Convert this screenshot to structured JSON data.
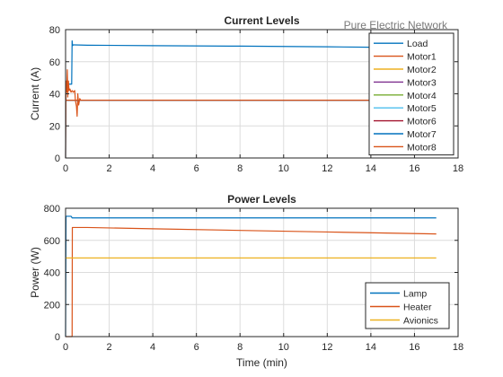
{
  "figure": {
    "annotation": "Pure Electric Network"
  },
  "chart_data": [
    {
      "type": "line",
      "title": "Current Levels",
      "xlabel": "",
      "ylabel": "Current (A)",
      "xlim": [
        0,
        18
      ],
      "ylim": [
        0,
        80
      ],
      "xticks": [
        "0",
        "2",
        "4",
        "6",
        "8",
        "10",
        "12",
        "14",
        "16",
        "18"
      ],
      "yticks": [
        "0",
        "20",
        "40",
        "60",
        "80"
      ],
      "grid": true,
      "legend_placement": "top-right",
      "series": [
        {
          "name": "Load",
          "color": "#0072BD",
          "x": [
            0,
            0.02,
            0.05,
            0.1,
            0.2,
            0.28,
            0.3,
            0.32,
            0.35,
            0.4,
            1,
            4,
            8,
            12,
            14
          ],
          "y": [
            0,
            40,
            44,
            46,
            46,
            46,
            73,
            70,
            70.5,
            70.5,
            70.3,
            70,
            69.7,
            69.3,
            69
          ]
        },
        {
          "name": "Motor1",
          "color": "#D95319",
          "x": [
            0,
            0.02,
            0.05,
            0.08,
            0.1,
            0.13,
            0.16,
            0.2,
            0.25,
            0.3,
            0.35,
            0.42,
            0.45,
            0.5,
            0.53,
            0.56,
            0.6,
            0.65,
            0.7,
            1,
            4,
            8,
            12,
            14
          ],
          "y": [
            0,
            48,
            41,
            55,
            38,
            48,
            42,
            43,
            41,
            42,
            41,
            42,
            36,
            32,
            26,
            40,
            33,
            37,
            36,
            36,
            36,
            36,
            36,
            36
          ]
        },
        {
          "name": "Motor2",
          "color": "#EDB120",
          "x": [
            0,
            14
          ],
          "y": [
            36,
            36
          ]
        },
        {
          "name": "Motor3",
          "color": "#7E2F8E",
          "x": [
            0,
            14
          ],
          "y": [
            36,
            36
          ]
        },
        {
          "name": "Motor4",
          "color": "#77AC30",
          "x": [
            0,
            14
          ],
          "y": [
            36,
            36
          ]
        },
        {
          "name": "Motor5",
          "color": "#4DBEEE",
          "x": [
            0,
            14
          ],
          "y": [
            36,
            36
          ]
        },
        {
          "name": "Motor6",
          "color": "#A2142F",
          "x": [
            0,
            14
          ],
          "y": [
            36,
            36
          ]
        },
        {
          "name": "Motor7",
          "color": "#0072BD",
          "x": [
            0,
            14
          ],
          "y": [
            36,
            36
          ]
        },
        {
          "name": "Motor8",
          "color": "#D95319",
          "x": [
            0,
            0.6,
            0.7,
            14
          ],
          "y": [
            36,
            36,
            36,
            36
          ]
        }
      ]
    },
    {
      "type": "line",
      "title": "Power Levels",
      "xlabel": "Time (min)",
      "ylabel": "Power (W)",
      "xlim": [
        0,
        18
      ],
      "ylim": [
        0,
        800
      ],
      "xticks": [
        "0",
        "2",
        "4",
        "6",
        "8",
        "10",
        "12",
        "14",
        "16",
        "18"
      ],
      "yticks": [
        "0",
        "200",
        "400",
        "600",
        "800"
      ],
      "grid": true,
      "legend_placement": "bottom-right",
      "series": [
        {
          "name": "Lamp",
          "color": "#0072BD",
          "x": [
            0,
            0.02,
            0.25,
            0.28,
            0.3,
            1,
            17
          ],
          "y": [
            0,
            750,
            750,
            745,
            740,
            740,
            740
          ]
        },
        {
          "name": "Heater",
          "color": "#D95319",
          "x": [
            0,
            0.3,
            0.31,
            1,
            4,
            8,
            12,
            17
          ],
          "y": [
            0,
            0,
            680,
            680,
            672,
            662,
            652,
            640
          ]
        },
        {
          "name": "Avionics",
          "color": "#EDB120",
          "x": [
            0,
            17
          ],
          "y": [
            490,
            490
          ]
        }
      ]
    }
  ]
}
